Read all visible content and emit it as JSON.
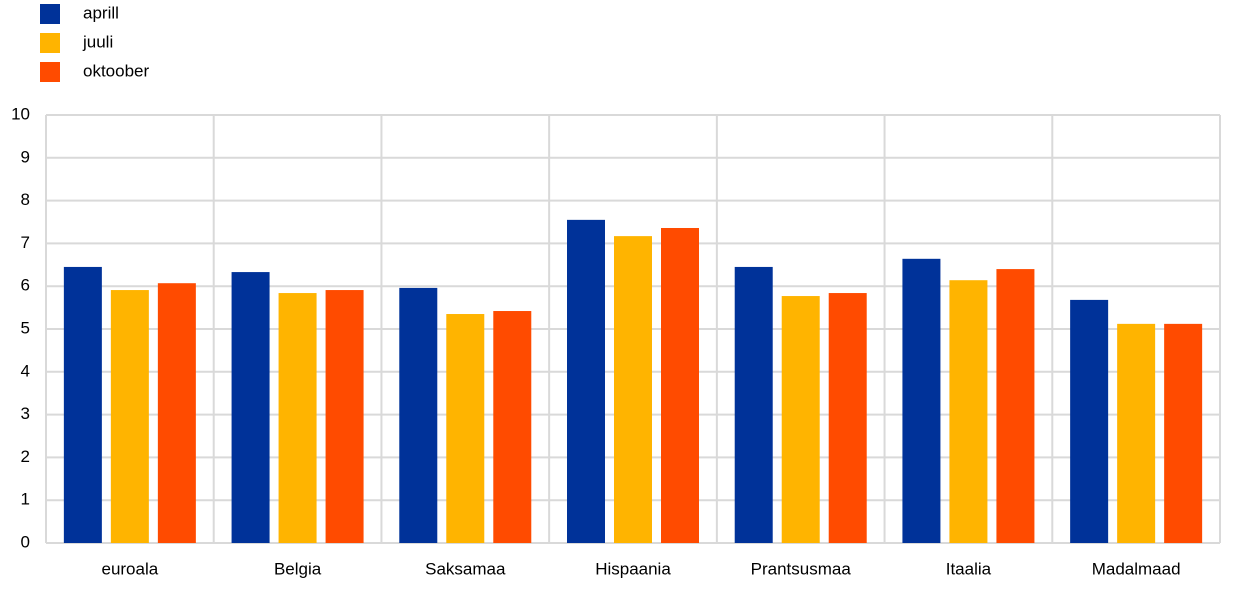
{
  "chart_data": {
    "type": "bar",
    "categories": [
      "euroala",
      "Belgia",
      "Saksamaa",
      "Hispaania",
      "Prantsusmaa",
      "Itaalia",
      "Madalmaad"
    ],
    "series": [
      {
        "name": "aprill",
        "color": "#003299",
        "values": [
          6.45,
          6.33,
          5.96,
          7.55,
          6.45,
          6.64,
          5.68
        ]
      },
      {
        "name": "juuli",
        "color": "#ffb400",
        "values": [
          5.91,
          5.84,
          5.35,
          7.17,
          5.77,
          6.14,
          5.12
        ]
      },
      {
        "name": "oktoober",
        "color": "#ff4b00",
        "values": [
          6.07,
          5.91,
          5.42,
          7.36,
          5.84,
          6.4,
          5.12
        ]
      }
    ],
    "ylim": [
      0,
      10
    ],
    "yticks": [
      0,
      1,
      2,
      3,
      4,
      5,
      6,
      7,
      8,
      9,
      10
    ],
    "grid": true
  }
}
